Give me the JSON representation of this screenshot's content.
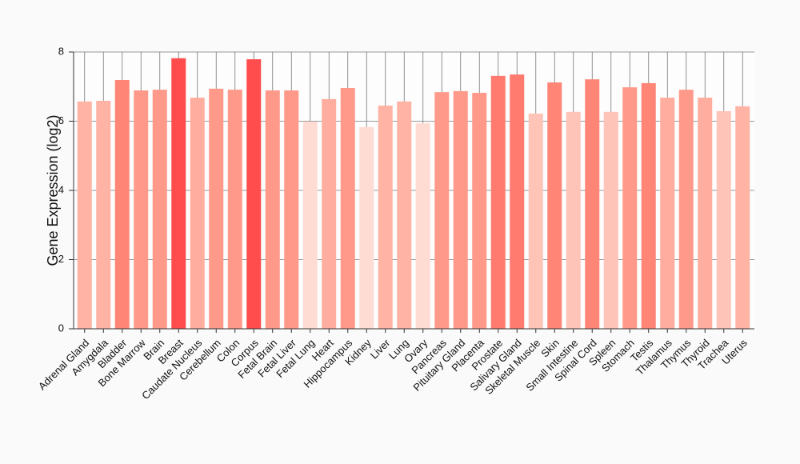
{
  "chart_data": {
    "type": "bar",
    "ylabel": "Gene Expression (log2)",
    "categories": [
      "Adrenal Gland",
      "Amygdala",
      "Bladder",
      "Bone Marrow",
      "Brain",
      "Breast",
      "Caudate Nucleus",
      "Cerebellum",
      "Colon",
      "Corpus",
      "Fetal Brain",
      "Fetal Liver",
      "Fetal Lung",
      "Heart",
      "Hippocampus",
      "Kidney",
      "Liver",
      "Lung",
      "Ovary",
      "Pancreas",
      "Pituitary Gland",
      "Placenta",
      "Prostate",
      "Salivary Gland",
      "Skeletal Muscle",
      "Skin",
      "Small Intestine",
      "Spinal Cord",
      "Spleen",
      "Stomach",
      "Testis",
      "Thalamus",
      "Thymus",
      "Thyroid",
      "Trachea",
      "Uterus"
    ],
    "values": [
      6.57,
      6.59,
      7.19,
      6.89,
      6.91,
      7.82,
      6.68,
      6.94,
      6.91,
      7.79,
      6.89,
      6.89,
      5.99,
      6.64,
      6.96,
      5.83,
      6.45,
      6.57,
      5.94,
      6.84,
      6.87,
      6.82,
      7.31,
      7.35,
      6.22,
      7.12,
      6.27,
      7.21,
      6.27,
      6.98,
      7.1,
      6.68,
      6.91,
      6.68,
      6.29,
      6.43
    ],
    "colors": [
      "#ffb3a5",
      "#ffb3a5",
      "#ff8576",
      "#ff9a8a",
      "#ff9a8a",
      "#ff4d4d",
      "#ffad9f",
      "#ff9a8a",
      "#ff9a8a",
      "#ff4d4d",
      "#ff9a8a",
      "#ff9a8a",
      "#ffdcd3",
      "#ffad9f",
      "#ff9a8a",
      "#ffdcd3",
      "#ffb3a5",
      "#ffb3a5",
      "#ffdcd3",
      "#ff9a8a",
      "#ff9a8a",
      "#ff9a8a",
      "#ff7b6f",
      "#ff7b6f",
      "#ffc4b8",
      "#ff8576",
      "#ffc4b8",
      "#ff8576",
      "#ffc4b8",
      "#ff9a8a",
      "#ff8576",
      "#ffad9f",
      "#ff9a8a",
      "#ffad9f",
      "#ffc4b8",
      "#ffb3a5"
    ],
    "ylim": [
      0,
      8
    ],
    "yticks": [
      0,
      2,
      4,
      6,
      8
    ],
    "grid": true
  }
}
